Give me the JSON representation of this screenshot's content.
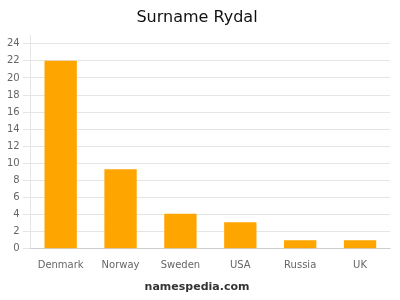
{
  "chart_data": {
    "type": "bar",
    "title": "Surname Rydal",
    "categories": [
      "Denmark",
      "Norway",
      "Sweden",
      "USA",
      "Russia",
      "UK"
    ],
    "values": [
      22,
      9.3,
      4.1,
      3.1,
      1.0,
      1.0
    ],
    "color": "#FFA500",
    "ylim": [
      0,
      25
    ],
    "yticks": [
      0,
      2,
      4,
      6,
      8,
      10,
      12,
      14,
      16,
      18,
      20,
      22,
      24
    ],
    "grid": true,
    "annotations": [
      "namespedia.com"
    ]
  }
}
